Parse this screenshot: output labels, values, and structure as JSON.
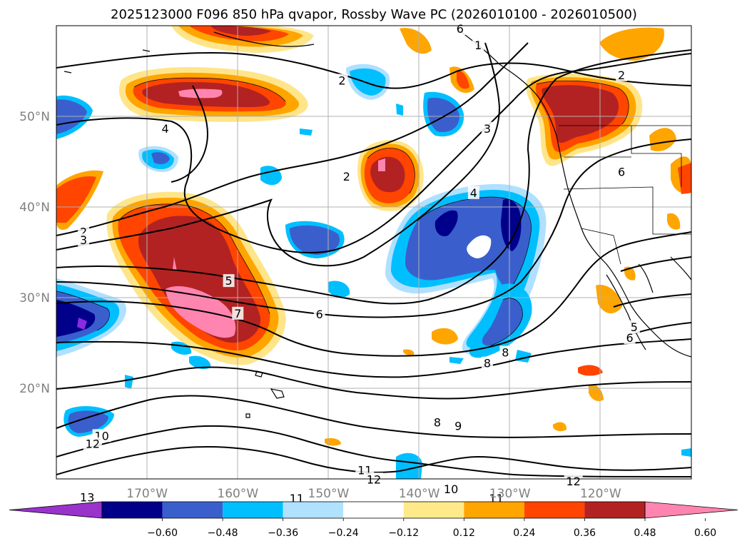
{
  "title": "2025123000 F096 850 hPa qvapor, Rossby Wave PC (2026010100 - 2026010500)",
  "map": {
    "lon_range": [
      -180,
      -110
    ],
    "lat_range": [
      10,
      60
    ],
    "lon_ticks": [
      {
        "lon": -170,
        "label": "170°W"
      },
      {
        "lon": -160,
        "label": "160°W"
      },
      {
        "lon": -150,
        "label": "150°W"
      },
      {
        "lon": -140,
        "label": "140°W"
      },
      {
        "lon": -130,
        "label": "130°W"
      },
      {
        "lon": -120,
        "label": "120°W"
      }
    ],
    "lat_ticks": [
      {
        "lat": 50,
        "label": "50°N"
      },
      {
        "lat": 40,
        "label": "40°N"
      },
      {
        "lat": 30,
        "label": "30°N"
      },
      {
        "lat": 20,
        "label": "20°N"
      }
    ],
    "grid": true,
    "colors": {
      "-0.60": "#8a2be2",
      "-0.48": "#00008b",
      "-0.36": "#3a5fcd",
      "-0.24": "#00bfff",
      "-0.12": "#b0e0ff",
      "0.12": "#ffe58a",
      "0.24": "#ffa500",
      "0.36": "#ff4500",
      "0.48": "#b22222",
      "0.60": "#ff85b0"
    }
  },
  "colorbar": {
    "levels": [
      "-0.60",
      "-0.48",
      "-0.36",
      "-0.24",
      "-0.12",
      "0.12",
      "0.24",
      "0.36",
      "0.48",
      "0.60"
    ],
    "level_labels": [
      "−0.60",
      "−0.48",
      "−0.36",
      "−0.24",
      "−0.12",
      "0.12",
      "0.24",
      "0.36",
      "0.48",
      "0.60"
    ],
    "colors": [
      "#9933cc",
      "#000088",
      "#3a5fcd",
      "#00bfff",
      "#b0e2ff",
      "#ffffff",
      "#ffea8a",
      "#ffa500",
      "#ff4500",
      "#b22222",
      "#ff85b0"
    ],
    "extend": "both"
  },
  "contour_labels": [
    {
      "text": "6",
      "lon": -135.5,
      "lat": 59.6
    },
    {
      "text": "1",
      "lon": -133.5,
      "lat": 57.8
    },
    {
      "text": "2",
      "lon": -148.5,
      "lat": 53.9
    },
    {
      "text": "2",
      "lon": -117.7,
      "lat": 54.5
    },
    {
      "text": "3",
      "lon": -132.5,
      "lat": 48.6
    },
    {
      "text": "4",
      "lon": -168,
      "lat": 48.6
    },
    {
      "text": "2",
      "lon": -148,
      "lat": 43.3
    },
    {
      "text": "4",
      "lon": -134,
      "lat": 41.5
    },
    {
      "text": "6",
      "lon": -117.7,
      "lat": 43.8
    },
    {
      "text": "2",
      "lon": -177,
      "lat": 37.2
    },
    {
      "text": "3",
      "lon": -177,
      "lat": 36.3
    },
    {
      "text": "5",
      "lon": -161,
      "lat": 31.8
    },
    {
      "text": "7",
      "lon": -160,
      "lat": 28.2
    },
    {
      "text": "6",
      "lon": -151,
      "lat": 28.1
    },
    {
      "text": "5",
      "lon": -116.3,
      "lat": 26.7
    },
    {
      "text": "6",
      "lon": -116.8,
      "lat": 25.5
    },
    {
      "text": "8",
      "lon": -130.5,
      "lat": 23.9
    },
    {
      "text": "8",
      "lon": -132.5,
      "lat": 22.7
    },
    {
      "text": "8",
      "lon": -138,
      "lat": 16.2
    },
    {
      "text": "9",
      "lon": -135.7,
      "lat": 15.8
    },
    {
      "text": "10",
      "lon": -175,
      "lat": 14.7
    },
    {
      "text": "12",
      "lon": -176,
      "lat": 13.8
    },
    {
      "text": "11",
      "lon": -146,
      "lat": 10.9
    },
    {
      "text": "12",
      "lon": -145,
      "lat": 9.9
    },
    {
      "text": "10",
      "lon": -136.5,
      "lat": 8.8
    },
    {
      "text": "11",
      "lon": -131.5,
      "lat": 7.8
    },
    {
      "text": "12",
      "lon": -123,
      "lat": 9.7
    },
    {
      "text": "11",
      "lon": -153.5,
      "lat": 7.8
    },
    {
      "text": "13",
      "lon": -176.6,
      "lat": 7.9
    }
  ]
}
